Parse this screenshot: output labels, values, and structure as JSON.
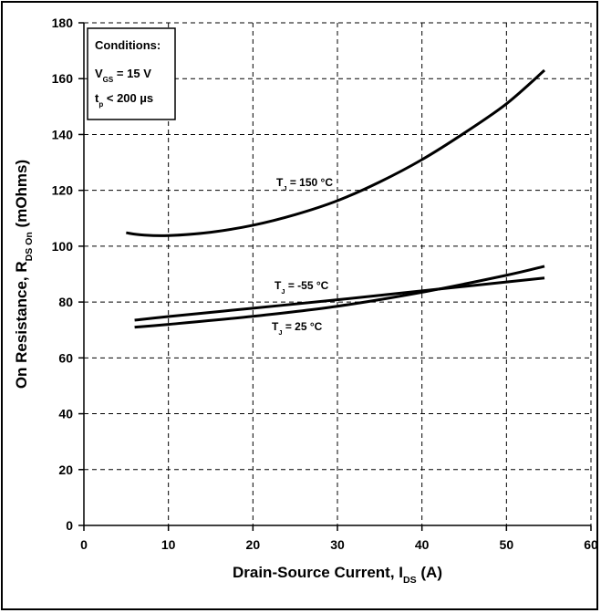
{
  "chart_data": {
    "type": "line",
    "xlabel": {
      "main": "Drain-Source Current, I",
      "sub": "DS",
      "unit": " (A)"
    },
    "ylabel": {
      "main": "On Resistance, R",
      "sub": "DS On",
      "unit": " (mOhms)"
    },
    "xlim": [
      0,
      60
    ],
    "ylim": [
      0,
      180
    ],
    "xticks": [
      0,
      10,
      20,
      30,
      40,
      50,
      60
    ],
    "yticks": [
      0,
      20,
      40,
      60,
      80,
      100,
      120,
      140,
      160,
      180
    ],
    "grid": true,
    "conditions": {
      "title": "Conditions:",
      "line1": {
        "main": "V",
        "sub": "GS",
        "rest": " = 15 V"
      },
      "line2": {
        "main": "t",
        "sub": "p",
        "rest": " < 200 µs"
      }
    },
    "series": [
      {
        "name": {
          "main": "T",
          "sub": "J",
          "rest": " = 150 °C"
        },
        "color": "#000000",
        "x": [
          5,
          7,
          10,
          15,
          20,
          25,
          30,
          35,
          40,
          45,
          50,
          54.5
        ],
        "y": [
          104.8,
          104.0,
          103.8,
          105.0,
          107.5,
          111.3,
          116.3,
          123.0,
          131.0,
          140.5,
          151.0,
          163.0
        ]
      },
      {
        "name": {
          "main": "T",
          "sub": "J",
          "rest": " = -55 °C"
        },
        "color": "#000000",
        "x": [
          6,
          10,
          20,
          30,
          40,
          50,
          54.5
        ],
        "y": [
          73.5,
          74.8,
          77.8,
          80.8,
          84.0,
          87.2,
          88.6
        ]
      },
      {
        "name": {
          "main": "T",
          "sub": "J",
          "rest": " = 25 °C"
        },
        "color": "#000000",
        "x": [
          6,
          10,
          20,
          30,
          40,
          50,
          54.5
        ],
        "y": [
          71.0,
          72.0,
          74.9,
          78.5,
          83.5,
          89.6,
          92.8
        ]
      }
    ]
  }
}
